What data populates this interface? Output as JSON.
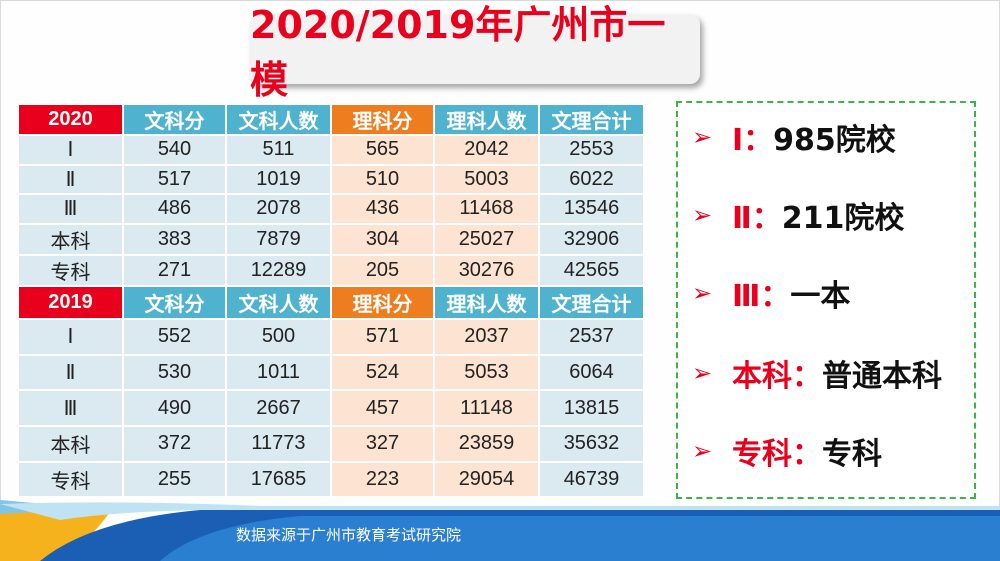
{
  "title": "2020/2019年广州市一模",
  "headers": {
    "col1": "文科分",
    "col2": "文科人数",
    "col3": "理科分",
    "col4": "理科人数",
    "col5": "文理合计"
  },
  "table2020": {
    "year": "2020",
    "rows": [
      [
        "Ⅰ",
        "540",
        "511",
        "565",
        "2042",
        "2553"
      ],
      [
        "Ⅱ",
        "517",
        "1019",
        "510",
        "5003",
        "6022"
      ],
      [
        "Ⅲ",
        "486",
        "2078",
        "436",
        "11468",
        "13546"
      ],
      [
        "本科",
        "383",
        "7879",
        "304",
        "25027",
        "32906"
      ],
      [
        "专科",
        "271",
        "12289",
        "205",
        "30276",
        "42565"
      ]
    ]
  },
  "table2019": {
    "year": "2019",
    "rows": [
      [
        "Ⅰ",
        "552",
        "500",
        "571",
        "2037",
        "2537"
      ],
      [
        "Ⅱ",
        "530",
        "1011",
        "524",
        "5053",
        "6064"
      ],
      [
        "Ⅲ",
        "490",
        "2667",
        "457",
        "11148",
        "13815"
      ],
      [
        "本科",
        "372",
        "11773",
        "327",
        "23859",
        "35632"
      ],
      [
        "专科",
        "255",
        "17685",
        "223",
        "29054",
        "46739"
      ]
    ]
  },
  "legend": [
    {
      "key": "Ⅰ：",
      "value": "985院校"
    },
    {
      "key": "Ⅱ：",
      "value": "211院校"
    },
    {
      "key": "Ⅲ：",
      "value": "一本"
    },
    {
      "key": "本科：",
      "value": "普通本科"
    },
    {
      "key": "专科：",
      "value": "专科"
    }
  ],
  "arrow_glyph": "➢",
  "source": "数据来源于广州市教育考试研究院",
  "colors": {
    "red": "#e8001c",
    "blue_header": "#4fb3cf",
    "orange_header": "#ee7d1f",
    "blue_cell": "#dbe9f1",
    "orange_cell": "#fde4d2",
    "green_border": "#3bb54a"
  }
}
